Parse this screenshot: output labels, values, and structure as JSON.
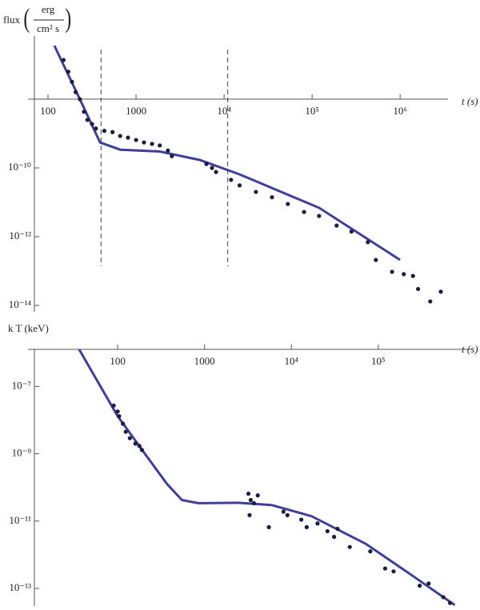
{
  "chart_data": [
    {
      "type": "scatter",
      "x_label": "t (s)",
      "y_label": {
        "prefix": "flux",
        "numerator": "erg",
        "denominator": "cm² s"
      },
      "log_x": true,
      "log_y": true,
      "xlim": [
        70,
        3500000
      ],
      "ylim": [
        6.5e-15,
        6.9e-07
      ],
      "axis_cross": 1e-08,
      "xticks": [
        100,
        1000,
        {
          "value": 10000,
          "label": "10⁴"
        },
        {
          "value": 100000,
          "label": "10⁵"
        },
        {
          "value": 1000000,
          "label": "10⁶"
        }
      ],
      "yticks": [
        {
          "value": 1e-10,
          "label": "10⁻¹⁰"
        },
        {
          "value": 1e-12,
          "label": "10⁻¹²"
        },
        {
          "value": 1e-14,
          "label": "10⁻¹⁴"
        }
      ],
      "vlines": [
        400,
        11000
      ],
      "points": {
        "color": "#1c1c40",
        "x": [
          150,
          170,
          187,
          206,
          230,
          256,
          280,
          316,
          350,
          436,
          540,
          660,
          810,
          1000,
          1230,
          1520,
          1860,
          2300,
          2550,
          6300,
          7300,
          8100,
          12000,
          15000,
          23000,
          35000,
          53000,
          81000,
          120000,
          190000,
          280000,
          430000,
          530000,
          810000,
          1100000,
          1400000,
          1600000,
          2200000,
          2900000
        ],
        "y": [
          1.38e-07,
          6.3e-08,
          3.2e-08,
          1.6e-08,
          1e-08,
          4.3e-09,
          2.5e-09,
          1.9e-09,
          1.4e-09,
          1.2e-09,
          1.1e-09,
          8.5e-10,
          7.6e-10,
          6.5e-10,
          5.5e-10,
          5e-10,
          4.5e-10,
          3.2e-10,
          2.2e-10,
          1.3e-10,
          1e-10,
          7.6e-11,
          4.5e-11,
          3.1e-11,
          2e-11,
          1.4e-11,
          8.9e-12,
          5.2e-12,
          4e-12,
          2.1e-12,
          1.4e-12,
          6.9e-13,
          2.1e-13,
          9.5e-14,
          8.1e-14,
          7.2e-14,
          3e-14,
          1.3e-14,
          2.5e-14
        ]
      },
      "model": {
        "color": "#3f3f9a",
        "x": [
          118,
          230,
          390,
          660,
          1860,
          5300,
          15000,
          120000,
          1000000
        ],
        "y": [
          3.6e-07,
          1e-08,
          5.5e-10,
          3.4e-10,
          3e-10,
          1.7e-10,
          6.5e-11,
          6.9e-12,
          2.1e-13
        ]
      }
    },
    {
      "type": "scatter",
      "x_label": "t (s)",
      "y_label": {
        "prefix": "k T (keV)"
      },
      "log_x": true,
      "log_y": true,
      "xlim": [
        11,
        1200000
      ],
      "ylim": [
        3e-14,
        1.26e-06
      ],
      "axis_cross": 1.26e-06,
      "xticks": [
        100,
        1000,
        {
          "value": 10000,
          "label": "10⁴"
        },
        {
          "value": 100000,
          "label": "10⁵"
        }
      ],
      "yticks": [
        {
          "value": 1e-07,
          "label": "10⁻⁷"
        },
        {
          "value": 1e-09,
          "label": "10⁻⁹"
        },
        {
          "value": 1e-11,
          "label": "10⁻¹¹"
        },
        {
          "value": 1e-13,
          "label": "10⁻¹³"
        }
      ],
      "points": {
        "color": "#1c1c40",
        "x": [
          90,
          100,
          104,
          115,
          124,
          138,
          160,
          178,
          190,
          3200,
          3400,
          3700,
          4100,
          3300,
          5500,
          8100,
          9000,
          13000,
          15000,
          20000,
          26000,
          31000,
          34000,
          47000,
          81000,
          120000,
          150000,
          300000,
          380000,
          560000,
          670000
        ],
        "y": [
          2.7e-08,
          1.8e-08,
          1.3e-08,
          7.8e-09,
          4.5e-09,
          2.9e-09,
          2e-09,
          1.7e-09,
          1.3e-09,
          6.5e-11,
          4.2e-11,
          3.4e-11,
          5.8e-11,
          1.5e-11,
          6.6e-12,
          1.9e-11,
          1.5e-11,
          1.1e-11,
          6.6e-12,
          8.5e-12,
          5e-12,
          3.4e-12,
          5.9e-12,
          1.7e-12,
          1.26e-12,
          3.9e-13,
          3.2e-13,
          1.2e-13,
          1.4e-13,
          5.5e-14,
          3.7e-14
        ]
      },
      "model": {
        "color": "#3f3f9a",
        "x": [
          36,
          100,
          200,
          370,
          550,
          850,
          2450,
          5900,
          17000,
          72000,
          210000,
          760000
        ],
        "y": [
          1.26e-06,
          1.3e-08,
          1.1e-09,
          1.26e-10,
          4.2e-11,
          3.4e-11,
          3.5e-11,
          3e-11,
          1.4e-11,
          2.1e-12,
          3.2e-13,
          3.2e-14
        ]
      }
    }
  ]
}
